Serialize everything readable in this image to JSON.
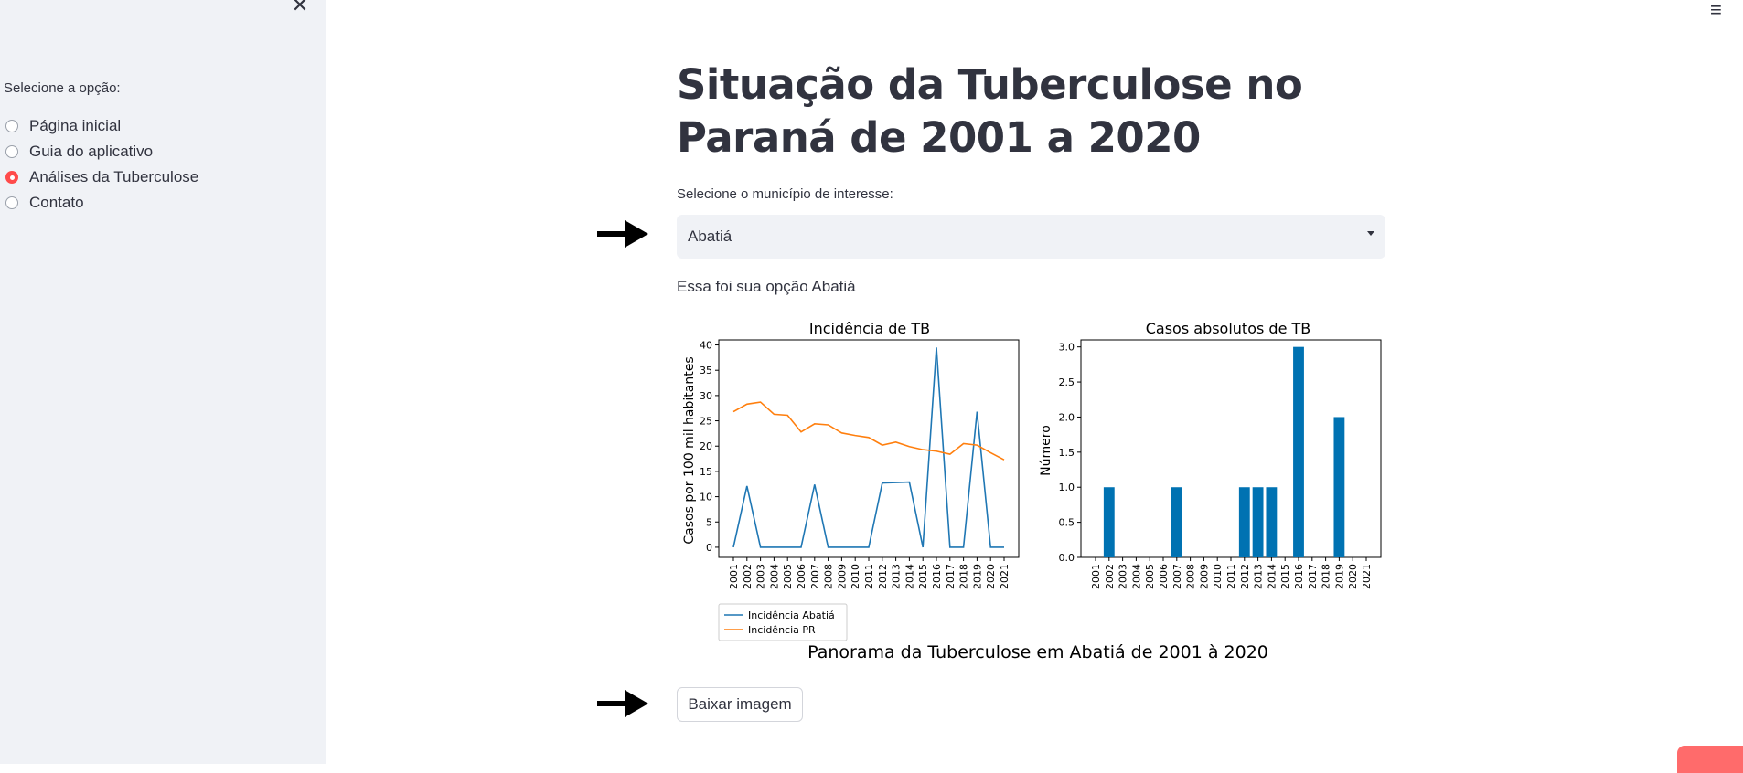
{
  "sidebar": {
    "label": "Selecione a opção:",
    "options": [
      {
        "label": "Página inicial",
        "selected": false
      },
      {
        "label": "Guia do aplicativo",
        "selected": false
      },
      {
        "label": "Análises da Tuberculose",
        "selected": true
      },
      {
        "label": "Contato",
        "selected": false
      }
    ],
    "close_icon": "close-icon"
  },
  "header": {
    "menu_icon": "hamburger-menu-icon"
  },
  "main": {
    "title": "Situação da Tuberculose no Paraná de 2001 a 2020",
    "select_label": "Selecione o município de interesse:",
    "select_value": "Abatiá",
    "chosen_text": "Essa foi sua opção Abatiá",
    "download_label": "Baixar imagem"
  },
  "colors": {
    "series_blue": "#1f77b4",
    "series_orange": "#ff7f0e",
    "bar": "#0072b2",
    "accent": "#ff4b4b"
  },
  "chart_data": [
    {
      "type": "line",
      "title": "Incidência de TB",
      "ylabel": "Casos por 100 mil habitantes",
      "x": [
        "2001",
        "2002",
        "2003",
        "2004",
        "2005",
        "2006",
        "2007",
        "2008",
        "2009",
        "2010",
        "2011",
        "2012",
        "2013",
        "2014",
        "2015",
        "2016",
        "2017",
        "2018",
        "2019",
        "2020",
        "2021"
      ],
      "ylim": [
        -2,
        41
      ],
      "yticks": [
        0,
        5,
        10,
        15,
        20,
        25,
        30,
        35,
        40
      ],
      "series": [
        {
          "name": "Incidência Abatiá",
          "color": "#1f77b4",
          "values": [
            0,
            12.1,
            0,
            0,
            0,
            0,
            12.4,
            0,
            0,
            0,
            0,
            12.7,
            12.8,
            12.9,
            0,
            39.5,
            0,
            0,
            26.8,
            0,
            0
          ]
        },
        {
          "name": "Incidência PR",
          "color": "#ff7f0e",
          "values": [
            26.8,
            28.3,
            28.7,
            26.3,
            26.1,
            22.8,
            24.4,
            24.2,
            22.6,
            22.1,
            21.7,
            20.2,
            20.8,
            19.9,
            19.3,
            19.0,
            18.4,
            20.5,
            20.2,
            18.7,
            17.3
          ]
        }
      ],
      "legend": "bottom-left outside"
    },
    {
      "type": "bar",
      "title": "Casos absolutos de TB",
      "ylabel": "Número",
      "categories": [
        "2001",
        "2002",
        "2003",
        "2004",
        "2005",
        "2006",
        "2007",
        "2008",
        "2009",
        "2010",
        "2011",
        "2012",
        "2013",
        "2014",
        "2015",
        "2016",
        "2017",
        "2018",
        "2019",
        "2020",
        "2021"
      ],
      "values": [
        0,
        1,
        0,
        0,
        0,
        0,
        1,
        0,
        0,
        0,
        0,
        1,
        1,
        1,
        0,
        3,
        0,
        0,
        2,
        0,
        0
      ],
      "ylim": [
        0,
        3.1
      ],
      "yticks": [
        "0.0",
        "0.5",
        "1.0",
        "1.5",
        "2.0",
        "2.5",
        "3.0"
      ]
    }
  ],
  "figure_caption": "Panorama da Tuberculose em Abatiá de 2001 à 2020"
}
